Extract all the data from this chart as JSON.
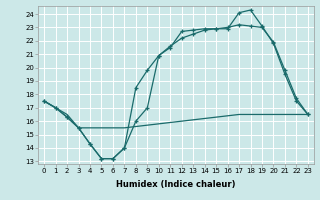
{
  "xlabel": "Humidex (Indice chaleur)",
  "background_color": "#cce8e8",
  "grid_color": "#ffffff",
  "line_color": "#1a6b6b",
  "xlim": [
    -0.5,
    23.5
  ],
  "ylim": [
    12.8,
    24.6
  ],
  "yticks": [
    13,
    14,
    15,
    16,
    17,
    18,
    19,
    20,
    21,
    22,
    23,
    24
  ],
  "xticks": [
    0,
    1,
    2,
    3,
    4,
    5,
    6,
    7,
    8,
    9,
    10,
    11,
    12,
    13,
    14,
    15,
    16,
    17,
    18,
    19,
    20,
    21,
    22,
    23
  ],
  "line1_x": [
    0,
    1,
    2,
    3,
    4,
    5,
    6,
    7,
    8,
    9,
    10,
    11,
    12,
    13,
    14,
    15,
    16,
    17,
    18,
    19,
    20,
    21,
    22,
    23
  ],
  "line1_y": [
    17.5,
    17.0,
    16.3,
    15.5,
    14.3,
    13.2,
    13.2,
    14.0,
    16.0,
    17.0,
    20.9,
    21.5,
    22.7,
    22.8,
    22.9,
    22.9,
    22.9,
    24.1,
    24.3,
    23.1,
    21.8,
    19.5,
    17.5,
    16.5
  ],
  "line2_x": [
    0,
    1,
    2,
    3,
    4,
    5,
    6,
    7,
    8,
    9,
    10,
    11,
    12,
    13,
    14,
    15,
    16,
    17,
    18,
    19,
    20,
    21,
    22,
    23
  ],
  "line2_y": [
    17.5,
    17.0,
    16.5,
    15.5,
    15.5,
    15.5,
    15.5,
    15.5,
    15.6,
    15.7,
    15.8,
    15.9,
    16.0,
    16.1,
    16.2,
    16.3,
    16.4,
    16.5,
    16.5,
    16.5,
    16.5,
    16.5,
    16.5,
    16.5
  ],
  "line3_x": [
    0,
    1,
    2,
    3,
    4,
    5,
    6,
    7,
    8,
    9,
    10,
    11,
    12,
    13,
    14,
    15,
    16,
    17,
    18,
    19,
    20,
    21,
    22,
    23
  ],
  "line3_y": [
    17.5,
    17.0,
    16.3,
    15.5,
    14.3,
    13.2,
    13.2,
    14.0,
    18.5,
    19.8,
    20.9,
    21.6,
    22.2,
    22.5,
    22.8,
    22.9,
    23.0,
    23.2,
    23.1,
    23.0,
    21.9,
    19.8,
    17.7,
    16.5
  ]
}
